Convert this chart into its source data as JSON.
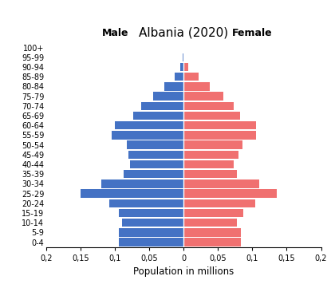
{
  "title": "Albania (2020)",
  "xlabel": "Population in millions",
  "age_groups": [
    "0-4",
    "5-9",
    "10-14",
    "15-19",
    "20-24",
    "25-29",
    "30-34",
    "35-39",
    "40-44",
    "45-49",
    "50-54",
    "55-59",
    "60-64",
    "65-69",
    "70-74",
    "75-79",
    "80-84",
    "85-89",
    "90-94",
    "95-99",
    "100+"
  ],
  "male": [
    0.095,
    0.095,
    0.09,
    0.095,
    0.108,
    0.15,
    0.12,
    0.087,
    0.078,
    0.08,
    0.083,
    0.105,
    0.1,
    0.073,
    0.062,
    0.045,
    0.028,
    0.013,
    0.005,
    0.001,
    0.0
  ],
  "female": [
    0.083,
    0.083,
    0.078,
    0.087,
    0.104,
    0.135,
    0.11,
    0.078,
    0.073,
    0.08,
    0.085,
    0.105,
    0.105,
    0.082,
    0.073,
    0.058,
    0.038,
    0.022,
    0.007,
    0.001,
    0.0
  ],
  "male_color": "#4472C4",
  "female_color": "#F07070",
  "xlim": 0.2,
  "xtick_vals": [
    -0.2,
    -0.15,
    -0.1,
    -0.05,
    0,
    0.05,
    0.1,
    0.15,
    0.2
  ],
  "xtick_labels": [
    "0,2",
    "0,15",
    "0,1",
    "0,05",
    "0",
    "0,05",
    "0,1",
    "0,15",
    "0,2"
  ],
  "label_male": "Male",
  "label_female": "Female",
  "background_color": "#ffffff",
  "bar_height": 0.85,
  "title_fontsize": 11,
  "label_fontsize": 9,
  "tick_fontsize": 7,
  "xlabel_fontsize": 8.5
}
